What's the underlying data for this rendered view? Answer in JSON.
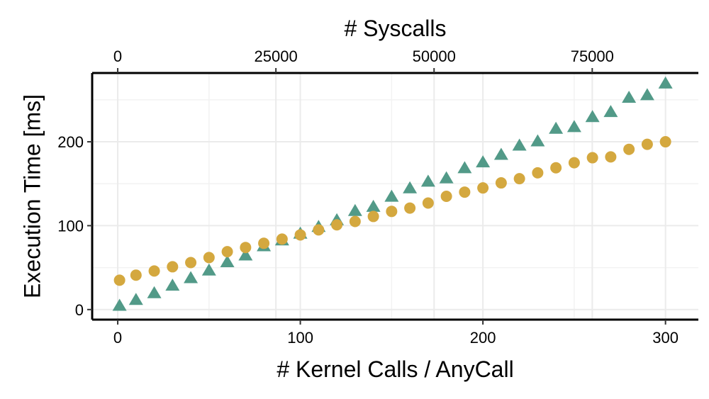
{
  "chart_data": {
    "type": "scatter",
    "xlabel": "# Kernel Calls / AnyCall",
    "ylabel": "Execution Time [ms]",
    "x2label": "# Syscalls",
    "xlim": [
      -14,
      318
    ],
    "ylim": [
      -12,
      282
    ],
    "x_ticks": [
      0,
      100,
      200,
      300
    ],
    "y_ticks": [
      0,
      100,
      200
    ],
    "x2_ticks": [
      0,
      25000,
      50000,
      75000
    ],
    "x2_scale_per_x": 288.6,
    "grid": true,
    "legend": "none",
    "series": [
      {
        "marker": "triangle",
        "color": "#529a88",
        "x": [
          1,
          10,
          20,
          30,
          40,
          50,
          60,
          70,
          80,
          90,
          100,
          110,
          120,
          130,
          140,
          150,
          160,
          170,
          180,
          190,
          200,
          210,
          220,
          230,
          240,
          250,
          260,
          270,
          280,
          290,
          300
        ],
        "y": [
          4,
          11,
          19,
          28,
          37,
          46,
          56,
          64,
          75,
          82,
          90,
          98,
          106,
          117,
          122,
          134,
          144,
          152,
          156,
          168,
          175,
          184,
          195,
          200,
          215,
          217,
          229,
          235,
          252,
          255,
          269
        ]
      },
      {
        "marker": "circle",
        "color": "#d4a83f",
        "x": [
          1,
          10,
          20,
          30,
          40,
          50,
          60,
          70,
          80,
          90,
          100,
          110,
          120,
          130,
          140,
          150,
          160,
          170,
          180,
          190,
          200,
          210,
          220,
          230,
          240,
          250,
          260,
          270,
          280,
          290,
          300
        ],
        "y": [
          35,
          41,
          46,
          51,
          56,
          62,
          69,
          74,
          79,
          84,
          89,
          95,
          101,
          105,
          111,
          117,
          121,
          127,
          135,
          140,
          145,
          151,
          156,
          163,
          169,
          175,
          181,
          182,
          191,
          197,
          200
        ]
      }
    ]
  }
}
